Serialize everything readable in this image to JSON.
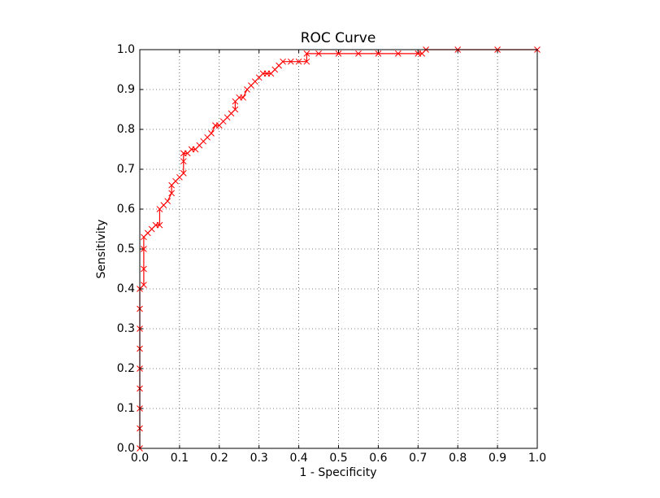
{
  "chart_data": {
    "type": "line",
    "title": "ROC Curve",
    "x_label": "1 - Specificity",
    "y_label": "Sensitivity",
    "x": [
      0,
      0,
      0,
      0,
      0,
      0,
      0,
      0,
      0,
      0.01,
      0.01,
      0.01,
      0.01,
      0.02,
      0.03,
      0.04,
      0.05,
      0.05,
      0.06,
      0.07,
      0.08,
      0.08,
      0.09,
      0.1,
      0.11,
      0.11,
      0.11,
      0.12,
      0.13,
      0.14,
      0.15,
      0.16,
      0.17,
      0.18,
      0.19,
      0.2,
      0.21,
      0.22,
      0.23,
      0.24,
      0.24,
      0.25,
      0.26,
      0.27,
      0.28,
      0.29,
      0.3,
      0.31,
      0.32,
      0.33,
      0.34,
      0.35,
      0.36,
      0.38,
      0.4,
      0.42,
      0.42,
      0.45,
      0.5,
      0.55,
      0.6,
      0.65,
      0.7,
      0.71,
      0.72,
      0.8,
      0.9,
      1.0
    ],
    "values": [
      0,
      0.05,
      0.1,
      0.15,
      0.2,
      0.25,
      0.3,
      0.35,
      0.4,
      0.41,
      0.45,
      0.5,
      0.53,
      0.54,
      0.55,
      0.56,
      0.56,
      0.6,
      0.61,
      0.62,
      0.64,
      0.66,
      0.67,
      0.68,
      0.69,
      0.72,
      0.74,
      0.74,
      0.75,
      0.75,
      0.76,
      0.77,
      0.78,
      0.79,
      0.81,
      0.81,
      0.82,
      0.83,
      0.84,
      0.85,
      0.87,
      0.88,
      0.88,
      0.9,
      0.91,
      0.92,
      0.93,
      0.94,
      0.94,
      0.94,
      0.95,
      0.96,
      0.97,
      0.97,
      0.97,
      0.97,
      0.99,
      0.99,
      0.99,
      0.99,
      0.99,
      0.99,
      0.99,
      0.99,
      1.0,
      1.0,
      1.0,
      1.0
    ],
    "color": "#ff0000",
    "marker": "x",
    "xlim": [
      0,
      1
    ],
    "ylim": [
      0,
      1
    ],
    "xticks": [
      {
        "value": 0,
        "label": "0.0"
      },
      0.1,
      0.2,
      0.3,
      0.4,
      0.5,
      0.6,
      0.7,
      0.8,
      0.9,
      {
        "value": 1,
        "label": "1.0"
      }
    ],
    "yticks": [
      {
        "value": 0,
        "label": "0.0"
      },
      0.1,
      0.2,
      0.3,
      0.4,
      0.5,
      0.6,
      0.7,
      0.8,
      0.9,
      {
        "value": 1,
        "label": "1.0"
      }
    ],
    "grid": true
  }
}
